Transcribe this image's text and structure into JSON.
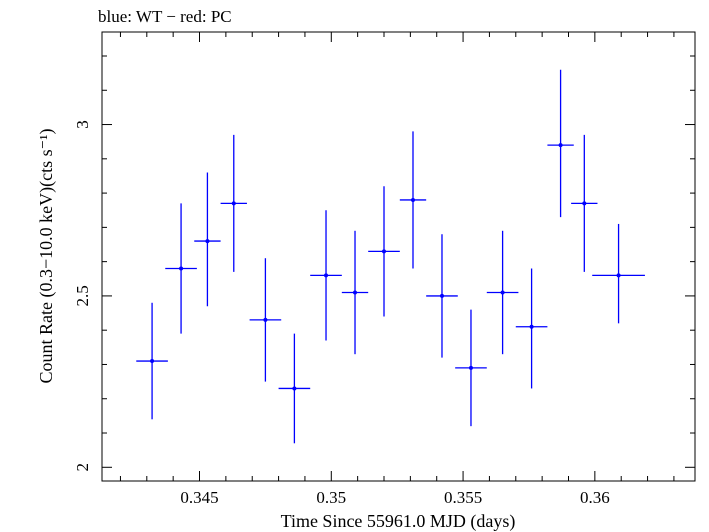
{
  "chart_data": {
    "type": "scatter",
    "title": "blue: WT − red: PC",
    "xlabel": "Time Since 55961.0 MJD (days)",
    "ylabel": "Count Rate (0.3−10.0 keV)(cts s⁻¹)",
    "xlim": [
      0.3413,
      0.3638
    ],
    "ylim": [
      1.96,
      3.27
    ],
    "x_ticks": [
      0.345,
      0.35,
      0.355,
      0.36
    ],
    "x_tick_labels": [
      "0.345",
      "0.35",
      "0.355",
      "0.36"
    ],
    "y_ticks": [
      2,
      2.5,
      3
    ],
    "y_tick_labels": [
      "2",
      "2.5",
      "3"
    ],
    "grid": false,
    "series": [
      {
        "color": "#0000ff",
        "points": [
          {
            "x": 0.3432,
            "y": 2.31,
            "xerr": 0.0006,
            "yerr_low": 0.17,
            "yerr_high": 0.17
          },
          {
            "x": 0.3443,
            "y": 2.58,
            "xerr": 0.0006,
            "yerr_low": 0.19,
            "yerr_high": 0.19
          },
          {
            "x": 0.3453,
            "y": 2.66,
            "xerr": 0.0005,
            "yerr_low": 0.19,
            "yerr_high": 0.2
          },
          {
            "x": 0.3463,
            "y": 2.77,
            "xerr": 0.0005,
            "yerr_low": 0.2,
            "yerr_high": 0.2
          },
          {
            "x": 0.3475,
            "y": 2.43,
            "xerr": 0.0006,
            "yerr_low": 0.18,
            "yerr_high": 0.18
          },
          {
            "x": 0.3486,
            "y": 2.23,
            "xerr": 0.0006,
            "yerr_low": 0.16,
            "yerr_high": 0.16
          },
          {
            "x": 0.3498,
            "y": 2.56,
            "xerr": 0.0006,
            "yerr_low": 0.19,
            "yerr_high": 0.19
          },
          {
            "x": 0.3509,
            "y": 2.51,
            "xerr": 0.0005,
            "yerr_low": 0.18,
            "yerr_high": 0.18
          },
          {
            "x": 0.352,
            "y": 2.63,
            "xerr": 0.0006,
            "yerr_low": 0.19,
            "yerr_high": 0.19
          },
          {
            "x": 0.3531,
            "y": 2.78,
            "xerr": 0.0005,
            "yerr_low": 0.2,
            "yerr_high": 0.2
          },
          {
            "x": 0.3542,
            "y": 2.5,
            "xerr": 0.0006,
            "yerr_low": 0.18,
            "yerr_high": 0.18
          },
          {
            "x": 0.3553,
            "y": 2.29,
            "xerr": 0.0006,
            "yerr_low": 0.17,
            "yerr_high": 0.17
          },
          {
            "x": 0.3565,
            "y": 2.51,
            "xerr": 0.0006,
            "yerr_low": 0.18,
            "yerr_high": 0.18
          },
          {
            "x": 0.3576,
            "y": 2.41,
            "xerr": 0.0006,
            "yerr_low": 0.18,
            "yerr_high": 0.17
          },
          {
            "x": 0.3587,
            "y": 2.94,
            "xerr": 0.0005,
            "yerr_low": 0.21,
            "yerr_high": 0.22
          },
          {
            "x": 0.3596,
            "y": 2.77,
            "xerr": 0.0005,
            "yerr_low": 0.2,
            "yerr_high": 0.2
          },
          {
            "x": 0.3609,
            "y": 2.56,
            "xerr": 0.001,
            "yerr_low": 0.14,
            "yerr_high": 0.15
          }
        ]
      }
    ]
  }
}
